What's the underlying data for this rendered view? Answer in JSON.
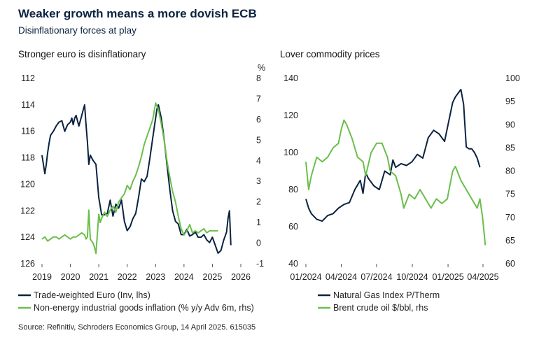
{
  "title": "Weaker growth means a more dovish ECB",
  "subtitle": "Disinflationary forces at play",
  "source": "Source: Refinitiv, Schroders Economics Group, 14 April 2025. 615035",
  "colors": {
    "navy": "#0b2340",
    "green": "#6abf4b"
  },
  "chart_data": [
    {
      "type": "line",
      "title": "Stronger euro is disinflationary",
      "x_ticks": [
        "2019",
        "2020",
        "2021",
        "2022",
        "2023",
        "2024",
        "2025",
        "2026"
      ],
      "xlim": [
        2019,
        2026
      ],
      "ylim_left": [
        126,
        112
      ],
      "left_inverted": true,
      "yticks_left": [
        "112",
        "114",
        "116",
        "118",
        "120",
        "122",
        "124",
        "126"
      ],
      "ylim_right": [
        -1,
        8
      ],
      "yticks_right": [
        "-1",
        "0",
        "1",
        "2",
        "3",
        "4",
        "5",
        "6",
        "7",
        "8"
      ],
      "right_unit": "%",
      "legend_position": "bottom",
      "series": [
        {
          "name": "Trade-weighted Euro (Inv, lhs)",
          "axis": "left",
          "color": "#0b2340",
          "x": [
            2019.0,
            2019.05,
            2019.1,
            2019.15,
            2019.2,
            2019.25,
            2019.3,
            2019.4,
            2019.5,
            2019.6,
            2019.7,
            2019.8,
            2019.9,
            2020.0,
            2020.05,
            2020.1,
            2020.15,
            2020.2,
            2020.3,
            2020.4,
            2020.45,
            2020.5,
            2020.55,
            2020.6,
            2020.65,
            2020.7,
            2020.8,
            2020.9,
            2021.0,
            2021.1,
            2021.2,
            2021.3,
            2021.4,
            2021.5,
            2021.6,
            2021.7,
            2021.8,
            2021.9,
            2022.0,
            2022.1,
            2022.2,
            2022.3,
            2022.4,
            2022.5,
            2022.6,
            2022.7,
            2022.8,
            2022.9,
            2023.0,
            2023.05,
            2023.1,
            2023.2,
            2023.3,
            2023.4,
            2023.5,
            2023.6,
            2023.7,
            2023.8,
            2023.9,
            2024.0,
            2024.1,
            2024.2,
            2024.3,
            2024.4,
            2024.5,
            2024.6,
            2024.7,
            2024.8,
            2024.9,
            2025.0,
            2025.1,
            2025.2,
            2025.3,
            2025.4,
            2025.5,
            2025.55,
            2025.6,
            2025.65
          ],
          "values": [
            117.8,
            118.5,
            119.2,
            118.5,
            117.6,
            116.9,
            116.3,
            116.0,
            115.6,
            115.3,
            115.2,
            116.0,
            115.5,
            115.3,
            115.0,
            115.5,
            115.0,
            114.8,
            115.6,
            114.8,
            114.4,
            114.0,
            115.5,
            116.8,
            118.5,
            117.8,
            118.2,
            118.5,
            121.0,
            122.3,
            122.3,
            122.2,
            121.2,
            122.4,
            121.5,
            121.8,
            121.2,
            122.8,
            123.5,
            123.2,
            122.6,
            122.2,
            121.0,
            119.6,
            119.8,
            119.4,
            118.0,
            116.5,
            115.0,
            114.3,
            114.0,
            115.0,
            116.6,
            118.5,
            120.4,
            122.0,
            122.8,
            123.0,
            123.8,
            123.8,
            123.4,
            123.9,
            123.8,
            123.6,
            124.0,
            124.0,
            123.8,
            124.2,
            124.4,
            124.0,
            124.6,
            125.2,
            125.0,
            124.2,
            123.6,
            122.6,
            122.0,
            124.6
          ]
        },
        {
          "name": "Non-energy industrial goods inflation (% y/y Adv 6m, rhs)",
          "axis": "right",
          "color": "#6abf4b",
          "x": [
            2019.0,
            2019.1,
            2019.2,
            2019.3,
            2019.4,
            2019.5,
            2019.6,
            2019.7,
            2019.8,
            2019.9,
            2020.0,
            2020.1,
            2020.2,
            2020.3,
            2020.4,
            2020.5,
            2020.55,
            2020.6,
            2020.65,
            2020.7,
            2020.8,
            2020.85,
            2020.9,
            2021.0,
            2021.05,
            2021.1,
            2021.2,
            2021.3,
            2021.4,
            2021.5,
            2021.6,
            2021.7,
            2021.8,
            2021.9,
            2022.0,
            2022.1,
            2022.2,
            2022.3,
            2022.4,
            2022.5,
            2022.6,
            2022.7,
            2022.8,
            2022.9,
            2023.0,
            2023.1,
            2023.2,
            2023.3,
            2023.4,
            2023.5,
            2023.6,
            2023.7,
            2023.8,
            2023.9,
            2024.0,
            2024.1,
            2024.2,
            2024.3,
            2024.4,
            2024.5,
            2024.6,
            2024.7,
            2024.8,
            2024.9,
            2025.0,
            2025.1,
            2025.2
          ],
          "values": [
            0.2,
            0.3,
            0.1,
            0.2,
            0.3,
            0.3,
            0.2,
            0.3,
            0.4,
            0.3,
            0.2,
            0.3,
            0.3,
            0.4,
            0.5,
            0.4,
            0.2,
            0.3,
            1.6,
            0.2,
            0.0,
            -0.2,
            -0.5,
            1.4,
            1.0,
            1.2,
            1.5,
            1.3,
            1.6,
            1.8,
            1.5,
            2.0,
            2.2,
            2.4,
            2.8,
            2.6,
            3.0,
            3.3,
            3.7,
            4.2,
            4.8,
            5.2,
            5.6,
            6.0,
            6.8,
            6.5,
            5.8,
            5.0,
            4.0,
            3.2,
            2.5,
            2.0,
            1.3,
            0.7,
            0.4,
            0.6,
            0.9,
            0.5,
            0.6,
            0.5,
            0.6,
            0.7,
            0.5,
            0.6,
            0.6,
            0.6,
            0.6
          ]
        }
      ]
    },
    {
      "type": "line",
      "title": "Lover commodity prices",
      "x_ticks": [
        "01/2024",
        "04/2024",
        "07/2024",
        "10/2024",
        "01/2025",
        "04/2025"
      ],
      "xlim": [
        "2024-01-01",
        "2025-04-01"
      ],
      "ylim_left": [
        40,
        140
      ],
      "yticks_left": [
        "40",
        "60",
        "80",
        "100",
        "120",
        "140"
      ],
      "ylim_right": [
        60,
        100
      ],
      "yticks_right": [
        "60",
        "65",
        "70",
        "75",
        "80",
        "85",
        "90",
        "95",
        "100"
      ],
      "legend_position": "bottom",
      "series": [
        {
          "name": "Natural Gas Index P/Therm",
          "axis": "left",
          "color": "#0b2340",
          "x": [
            "2024-01-01",
            "2024-01-08",
            "2024-01-15",
            "2024-01-29",
            "2024-02-12",
            "2024-02-26",
            "2024-03-11",
            "2024-03-25",
            "2024-04-08",
            "2024-04-22",
            "2024-05-06",
            "2024-05-20",
            "2024-05-27",
            "2024-06-03",
            "2024-06-10",
            "2024-06-24",
            "2024-07-08",
            "2024-07-22",
            "2024-08-05",
            "2024-08-12",
            "2024-08-19",
            "2024-09-02",
            "2024-09-16",
            "2024-09-30",
            "2024-10-14",
            "2024-10-28",
            "2024-11-11",
            "2024-11-25",
            "2024-12-09",
            "2024-12-23",
            "2025-01-06",
            "2025-01-13",
            "2025-01-20",
            "2025-02-03",
            "2025-02-10",
            "2025-02-17",
            "2025-02-24",
            "2025-03-03",
            "2025-03-10",
            "2025-03-17",
            "2025-03-24"
          ],
          "values": [
            75,
            70,
            67,
            64,
            63,
            66,
            67,
            70,
            72,
            73,
            80,
            85,
            78,
            89,
            86,
            82,
            80,
            90,
            88,
            96,
            92,
            94,
            93,
            95,
            99,
            97,
            108,
            112,
            110,
            106,
            120,
            127,
            130,
            134,
            126,
            103,
            102,
            102,
            100,
            97,
            92
          ]
        },
        {
          "name": "Brent crude oil $/bbl, rhs",
          "axis": "right",
          "color": "#6abf4b",
          "x": [
            "2024-01-01",
            "2024-01-08",
            "2024-01-15",
            "2024-01-29",
            "2024-02-12",
            "2024-02-26",
            "2024-03-11",
            "2024-03-25",
            "2024-04-01",
            "2024-04-08",
            "2024-04-15",
            "2024-04-29",
            "2024-05-13",
            "2024-05-27",
            "2024-06-03",
            "2024-06-17",
            "2024-07-01",
            "2024-07-15",
            "2024-07-29",
            "2024-08-05",
            "2024-08-19",
            "2024-09-02",
            "2024-09-09",
            "2024-09-23",
            "2024-10-07",
            "2024-10-21",
            "2024-11-04",
            "2024-11-18",
            "2024-12-02",
            "2024-12-16",
            "2024-12-30",
            "2025-01-06",
            "2025-01-13",
            "2025-01-20",
            "2025-02-03",
            "2025-02-17",
            "2025-03-03",
            "2025-03-17",
            "2025-03-24",
            "2025-03-31",
            "2025-04-07"
          ],
          "values": [
            82,
            76,
            79,
            83,
            82,
            83,
            85,
            86,
            89,
            91,
            90,
            87,
            83,
            82,
            79,
            84,
            86,
            86,
            83,
            80,
            79,
            75,
            72,
            75,
            74,
            76,
            74,
            72,
            74,
            73,
            74,
            77,
            80,
            81,
            78,
            76,
            74,
            72,
            74,
            70,
            64
          ]
        }
      ]
    }
  ]
}
